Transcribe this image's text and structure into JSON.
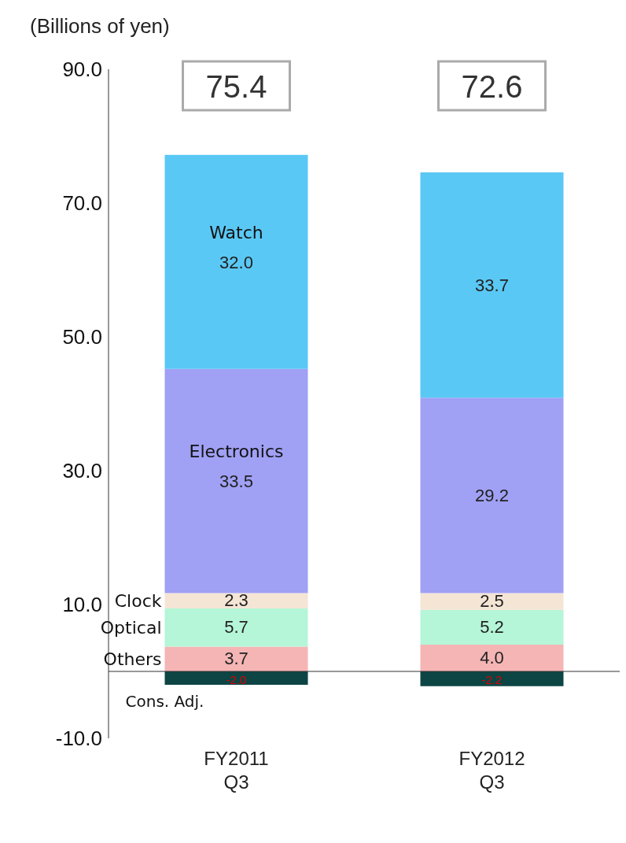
{
  "chart_data": {
    "type": "bar",
    "ylabel": "(Billions of yen)",
    "categories": [
      "FY2011\nQ3",
      "FY2012\nQ3"
    ],
    "stacked": true,
    "series": [
      {
        "name": "Cons. Adj.",
        "color": "#0d4545",
        "values": [
          -2.0,
          -2.2
        ],
        "value_labels": [
          "-2.0",
          "-2.2"
        ]
      },
      {
        "name": "Others",
        "color": "#f5b5b5",
        "values": [
          3.7,
          4.0
        ],
        "value_labels": [
          "3.7",
          "4.0"
        ]
      },
      {
        "name": "Optical",
        "color": "#b5f5d8",
        "values": [
          5.7,
          5.2
        ],
        "value_labels": [
          "5.7",
          "5.2"
        ]
      },
      {
        "name": "Clock",
        "color": "#f5e5d5",
        "values": [
          2.3,
          2.5
        ],
        "value_labels": [
          "2.3",
          "2.5"
        ]
      },
      {
        "name": "Electronics",
        "color": "#a0a0f5",
        "values": [
          33.5,
          29.2
        ],
        "value_labels": [
          "33.5",
          "29.2"
        ]
      },
      {
        "name": "Watch",
        "color": "#5ac8f5",
        "values": [
          32.0,
          33.7
        ],
        "value_labels": [
          "32.0",
          "33.7"
        ]
      }
    ],
    "totals": [
      "75.4",
      "72.6"
    ],
    "ylim": [
      -10,
      90
    ],
    "yticks": [
      {
        "value": -10,
        "label": "-10.0"
      },
      {
        "value": 10,
        "label": "10.0"
      },
      {
        "value": 30,
        "label": "30.0"
      },
      {
        "value": 50,
        "label": "50.0"
      },
      {
        "value": 70,
        "label": "70.0"
      },
      {
        "value": 90,
        "label": "90.0"
      }
    ],
    "ref_lines": [
      {
        "axis": "y",
        "value": 0
      }
    ],
    "grid": false,
    "legend": false
  }
}
